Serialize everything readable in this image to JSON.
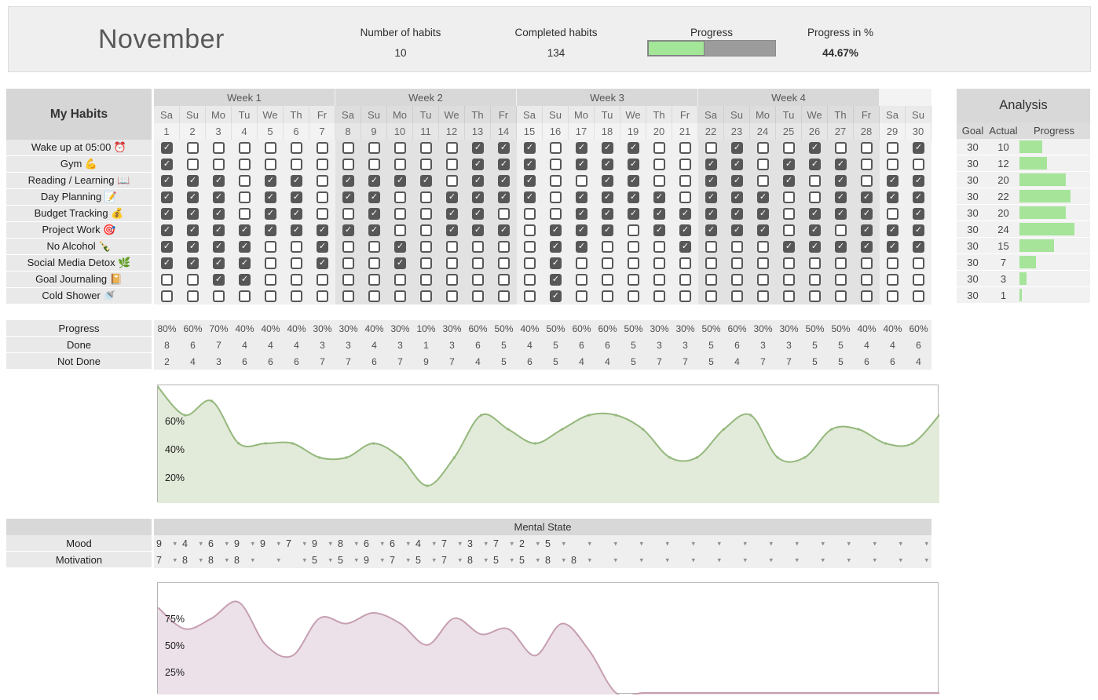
{
  "topbar": {
    "month": "November",
    "stats": [
      {
        "label": "Number of habits",
        "value": "10"
      },
      {
        "label": "Completed habits",
        "value": "134"
      },
      {
        "label": "Progress",
        "progress_pct": 44.67
      },
      {
        "label": "Progress in %",
        "value": "44.67%"
      }
    ]
  },
  "habit_grid": {
    "title": "My Habits",
    "week_labels": [
      "Week 1",
      "Week 2",
      "Week 3",
      "Week 4"
    ],
    "day_names": [
      "Sa",
      "Su",
      "Mo",
      "Tu",
      "We",
      "Th",
      "Fr"
    ],
    "dates": [
      1,
      2,
      3,
      4,
      5,
      6,
      7,
      8,
      9,
      10,
      11,
      12,
      13,
      14,
      15,
      16,
      17,
      18,
      19,
      20,
      21,
      22,
      23,
      24,
      25,
      26,
      27,
      28,
      29,
      30
    ],
    "habits": [
      {
        "label": "Wake up at 05:00 ⏰",
        "checks": [
          1,
          0,
          0,
          0,
          0,
          0,
          0,
          0,
          0,
          0,
          0,
          0,
          1,
          1,
          1,
          0,
          1,
          1,
          1,
          0,
          0,
          0,
          1,
          0,
          0,
          1,
          0,
          0,
          0,
          1
        ]
      },
      {
        "label": "Gym 💪",
        "checks": [
          1,
          0,
          0,
          0,
          0,
          0,
          0,
          0,
          0,
          0,
          0,
          0,
          1,
          1,
          1,
          0,
          1,
          1,
          1,
          0,
          0,
          1,
          1,
          0,
          1,
          1,
          1,
          0,
          0,
          0
        ]
      },
      {
        "label": "Reading / Learning 📖",
        "checks": [
          1,
          1,
          1,
          0,
          1,
          1,
          0,
          1,
          1,
          1,
          1,
          0,
          1,
          1,
          1,
          0,
          0,
          1,
          1,
          0,
          0,
          1,
          1,
          0,
          1,
          0,
          1,
          0,
          1,
          1
        ]
      },
      {
        "label": "Day Planning 📝",
        "checks": [
          1,
          1,
          1,
          0,
          1,
          1,
          0,
          1,
          1,
          0,
          0,
          1,
          1,
          1,
          1,
          0,
          1,
          1,
          1,
          1,
          0,
          1,
          1,
          1,
          0,
          0,
          1,
          1,
          1,
          1
        ]
      },
      {
        "label": "Budget Tracking 💰",
        "checks": [
          1,
          1,
          1,
          0,
          1,
          1,
          0,
          0,
          1,
          0,
          0,
          1,
          1,
          0,
          0,
          0,
          1,
          1,
          1,
          1,
          1,
          1,
          1,
          1,
          0,
          1,
          1,
          1,
          0,
          1
        ]
      },
      {
        "label": "Project Work 🎯",
        "checks": [
          1,
          1,
          1,
          1,
          1,
          1,
          1,
          1,
          1,
          0,
          0,
          1,
          1,
          1,
          0,
          1,
          1,
          1,
          0,
          1,
          1,
          1,
          1,
          1,
          0,
          1,
          0,
          1,
          1,
          1
        ]
      },
      {
        "label": "No Alcohol 🍾",
        "checks": [
          1,
          1,
          1,
          1,
          0,
          0,
          1,
          0,
          0,
          1,
          0,
          0,
          0,
          0,
          0,
          1,
          1,
          0,
          0,
          0,
          1,
          0,
          0,
          0,
          1,
          1,
          1,
          1,
          1,
          1
        ]
      },
      {
        "label": "Social Media Detox 🌿",
        "checks": [
          1,
          1,
          1,
          1,
          0,
          0,
          1,
          0,
          0,
          1,
          0,
          0,
          0,
          0,
          0,
          1,
          0,
          0,
          0,
          0,
          0,
          0,
          0,
          0,
          0,
          0,
          0,
          0,
          0,
          0
        ]
      },
      {
        "label": "Goal Journaling 📔",
        "checks": [
          0,
          0,
          1,
          1,
          0,
          0,
          0,
          0,
          0,
          0,
          0,
          0,
          0,
          0,
          0,
          1,
          0,
          0,
          0,
          0,
          0,
          0,
          0,
          0,
          0,
          0,
          0,
          0,
          0,
          0
        ]
      },
      {
        "label": "Cold Shower 🚿",
        "checks": [
          0,
          0,
          0,
          0,
          0,
          0,
          0,
          0,
          0,
          0,
          0,
          0,
          0,
          0,
          0,
          1,
          0,
          0,
          0,
          0,
          0,
          0,
          0,
          0,
          0,
          0,
          0,
          0,
          0,
          0
        ]
      }
    ]
  },
  "analysis": {
    "title": "Analysis",
    "columns": [
      "Goal",
      "Actual",
      "Progress"
    ],
    "rows": [
      {
        "goal": 30,
        "actual": 10
      },
      {
        "goal": 30,
        "actual": 12
      },
      {
        "goal": 30,
        "actual": 20
      },
      {
        "goal": 30,
        "actual": 22
      },
      {
        "goal": 30,
        "actual": 20
      },
      {
        "goal": 30,
        "actual": 24
      },
      {
        "goal": 30,
        "actual": 15
      },
      {
        "goal": 30,
        "actual": 7
      },
      {
        "goal": 30,
        "actual": 3
      },
      {
        "goal": 30,
        "actual": 1
      }
    ],
    "bar_color": "#a5e499"
  },
  "summary": {
    "rows": [
      {
        "label": "Progress",
        "values": [
          "80%",
          "60%",
          "70%",
          "40%",
          "40%",
          "40%",
          "30%",
          "30%",
          "40%",
          "30%",
          "10%",
          "30%",
          "60%",
          "50%",
          "40%",
          "50%",
          "60%",
          "60%",
          "50%",
          "30%",
          "30%",
          "50%",
          "60%",
          "30%",
          "30%",
          "50%",
          "50%",
          "40%",
          "40%",
          "60%"
        ]
      },
      {
        "label": "Done",
        "values": [
          "8",
          "6",
          "7",
          "4",
          "4",
          "4",
          "3",
          "3",
          "4",
          "3",
          "1",
          "3",
          "6",
          "5",
          "4",
          "5",
          "6",
          "6",
          "5",
          "3",
          "3",
          "5",
          "6",
          "3",
          "3",
          "5",
          "5",
          "4",
          "4",
          "6"
        ]
      },
      {
        "label": "Not Done",
        "values": [
          "2",
          "4",
          "3",
          "6",
          "6",
          "6",
          "7",
          "7",
          "6",
          "7",
          "9",
          "7",
          "4",
          "5",
          "6",
          "5",
          "4",
          "4",
          "5",
          "7",
          "7",
          "5",
          "4",
          "7",
          "7",
          "5",
          "5",
          "6",
          "6",
          "4"
        ]
      }
    ]
  },
  "mental_state": {
    "title": "Mental State",
    "rows": [
      {
        "label": "Mood",
        "values": [
          "9",
          "4",
          "6",
          "9",
          "9",
          "7",
          "9",
          "8",
          "6",
          "6",
          "4",
          "7",
          "3",
          "7",
          "2",
          "5",
          "",
          "",
          "",
          "",
          "",
          "",
          "",
          "",
          "",
          "",
          "",
          "",
          "",
          ""
        ]
      },
      {
        "label": "Motivation",
        "values": [
          "7",
          "8",
          "8",
          "8",
          "",
          "",
          "5",
          "5",
          "9",
          "7",
          "5",
          "7",
          "8",
          "5",
          "5",
          "8",
          "8",
          "",
          "",
          "",
          "",
          "",
          "",
          "",
          "",
          "",
          "",
          "",
          "",
          ""
        ]
      }
    ]
  },
  "chart_data": [
    {
      "type": "area",
      "name": "progress-by-day",
      "x": [
        1,
        2,
        3,
        4,
        5,
        6,
        7,
        8,
        9,
        10,
        11,
        12,
        13,
        14,
        15,
        16,
        17,
        18,
        19,
        20,
        21,
        22,
        23,
        24,
        25,
        26,
        27,
        28,
        29,
        30
      ],
      "values": [
        80,
        60,
        70,
        40,
        40,
        40,
        30,
        30,
        40,
        30,
        10,
        30,
        60,
        50,
        40,
        50,
        60,
        60,
        50,
        30,
        30,
        50,
        60,
        30,
        30,
        50,
        50,
        40,
        40,
        60
      ],
      "yticks": [
        {
          "label": "60%",
          "value": 60
        },
        {
          "label": "40%",
          "value": 40
        },
        {
          "label": "20%",
          "value": 20
        }
      ],
      "ylim": [
        0,
        100
      ],
      "line_color": "#94b87c",
      "fill_color": "#e2ead9",
      "dots": true
    },
    {
      "type": "area",
      "name": "mental-state-by-day",
      "x": [
        1,
        2,
        3,
        4,
        5,
        6,
        7,
        8,
        9,
        10,
        11,
        12,
        13,
        14,
        15,
        16,
        17,
        18,
        19,
        20,
        21,
        22,
        23,
        24,
        25,
        26,
        27,
        28,
        29,
        30
      ],
      "values": [
        80,
        60,
        70,
        85,
        45,
        35,
        70,
        65,
        75,
        65,
        45,
        70,
        55,
        60,
        35,
        65,
        40,
        0,
        0,
        0,
        0,
        0,
        0,
        0,
        0,
        0,
        0,
        0,
        0,
        0
      ],
      "yticks": [
        {
          "label": "75%",
          "value": 75
        },
        {
          "label": "50%",
          "value": 50
        },
        {
          "label": "25%",
          "value": 25
        }
      ],
      "ylim": [
        0,
        100
      ],
      "line_color": "#c69fb1",
      "fill_color": "#ece1e8",
      "dots": false
    }
  ],
  "icons": {
    "checkbox_check": "✓",
    "dropdown_arrow": "▾"
  }
}
